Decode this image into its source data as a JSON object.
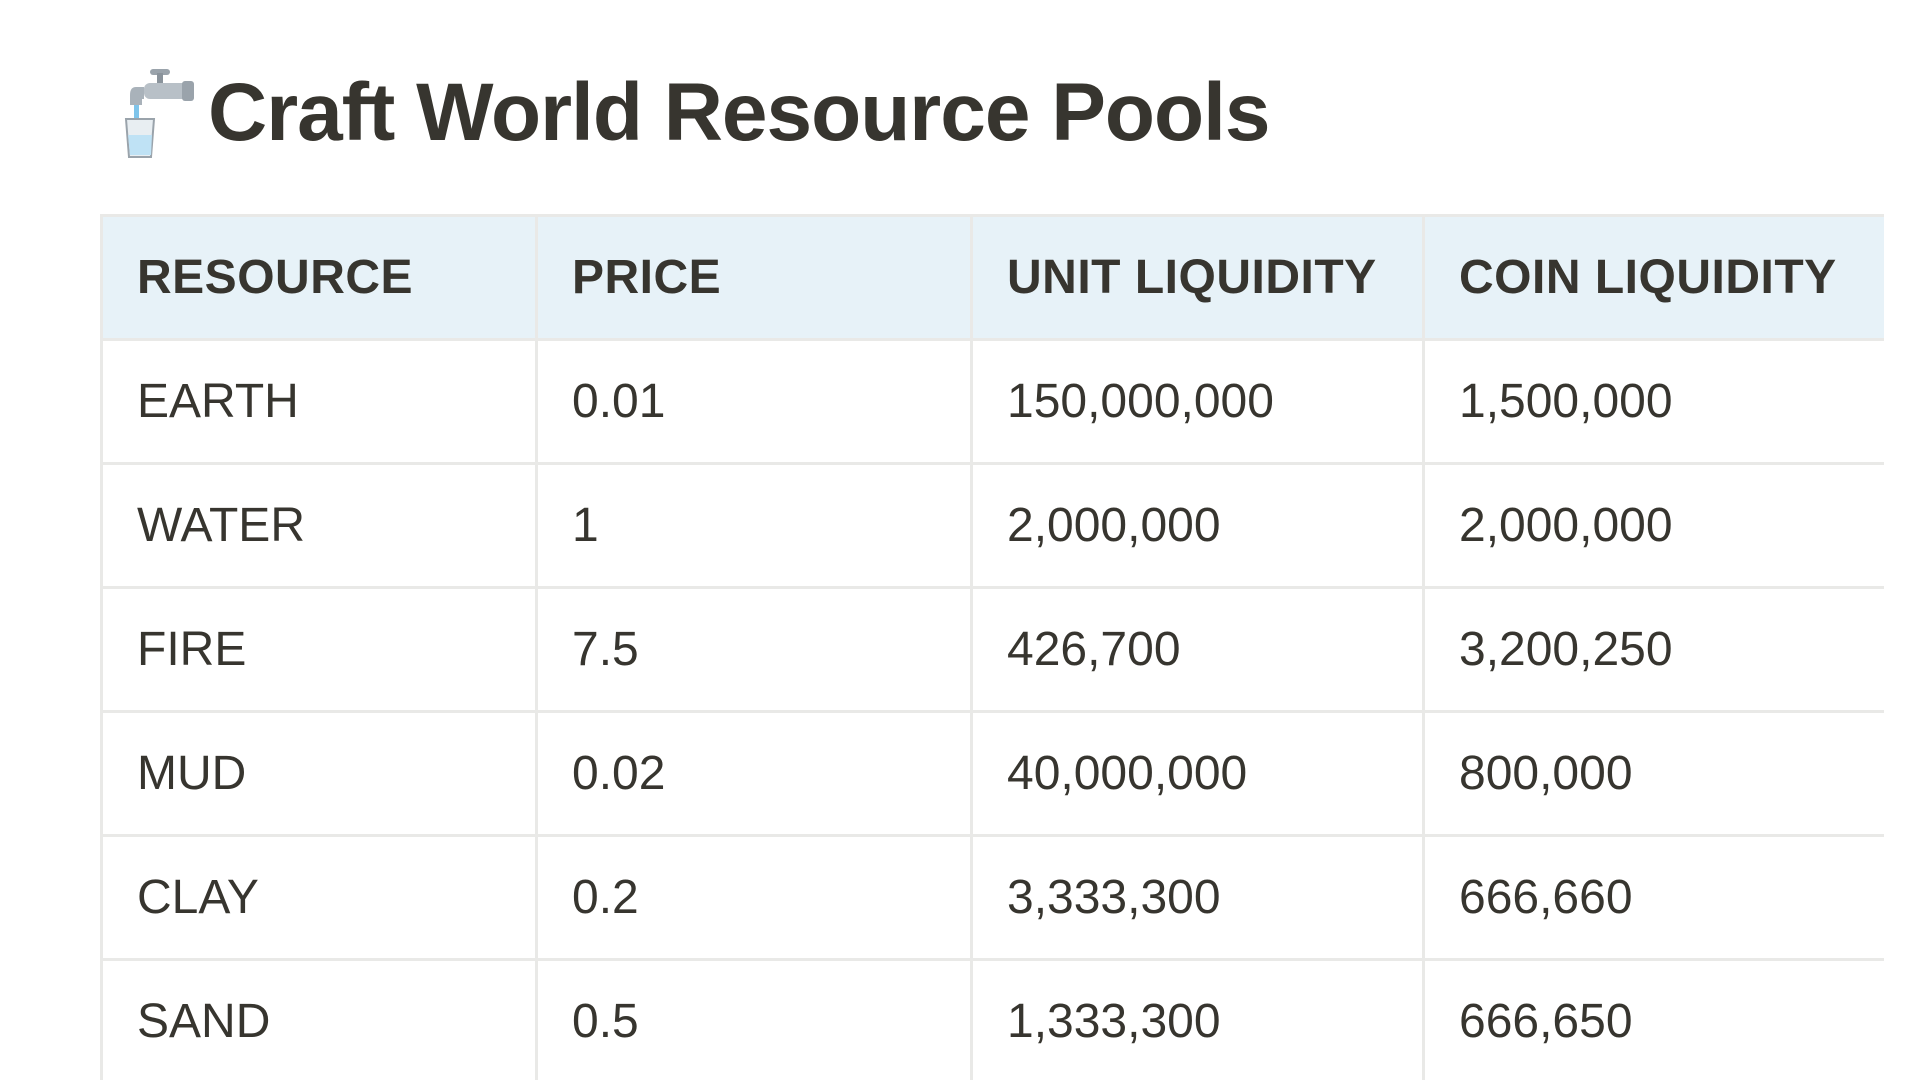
{
  "page": {
    "icon": "faucet-with-glass-icon",
    "title": "Craft World Resource Pools"
  },
  "table": {
    "columns": [
      "RESOURCE",
      "PRICE",
      "UNIT LIQUIDITY",
      "COIN LIQUIDITY"
    ],
    "rows": [
      [
        "EARTH",
        "0.01",
        "150,000,000",
        "1,500,000"
      ],
      [
        "WATER",
        "1",
        "2,000,000",
        "2,000,000"
      ],
      [
        "FIRE",
        "7.5",
        "426,700",
        "3,200,250"
      ],
      [
        "MUD",
        "0.02",
        "40,000,000",
        "800,000"
      ],
      [
        "CLAY",
        "0.2",
        "3,333,300",
        "666,660"
      ],
      [
        "SAND",
        "0.5",
        "1,333,300",
        "666,650"
      ]
    ]
  },
  "colors": {
    "header_background": "#e7f2f8",
    "border": "#e9e9e7",
    "text": "#37352f"
  }
}
